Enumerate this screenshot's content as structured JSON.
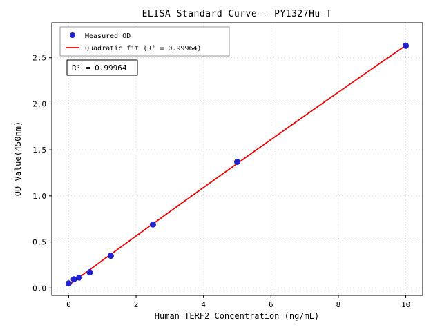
{
  "chart_data": {
    "type": "scatter",
    "title": "ELISA Standard Curve - PY1327Hu-T",
    "xlabel": "Human TERF2 Concentration (ng/mL)",
    "ylabel": "OD Value(450nm)",
    "x": [
      0,
      0.156,
      0.313,
      0.625,
      1.25,
      2.5,
      5,
      10
    ],
    "y": [
      0.05,
      0.095,
      0.113,
      0.17,
      0.35,
      0.69,
      1.37,
      2.63
    ],
    "series": [
      {
        "name": "Measured OD",
        "kind": "scatter",
        "color": "#2222cc"
      },
      {
        "name": "Quadratic fit (R² = 0.99964)",
        "kind": "line",
        "color": "#ee0000"
      }
    ],
    "annotation": "R² = 0.99964",
    "r_squared": 0.99964,
    "xlim": [
      -0.5,
      10.5
    ],
    "ylim": [
      -0.08,
      2.88
    ],
    "x_ticks": [
      0,
      2,
      4,
      6,
      8,
      10
    ],
    "y_ticks": [
      0.0,
      0.5,
      1.0,
      1.5,
      2.0,
      2.5
    ],
    "grid": true,
    "legend_position": "upper-left",
    "colors": {
      "marker": "#2222cc",
      "fit_line": "#ee0000",
      "grid": "#c9c9c9",
      "axis": "#000000",
      "background": "#ffffff"
    }
  }
}
